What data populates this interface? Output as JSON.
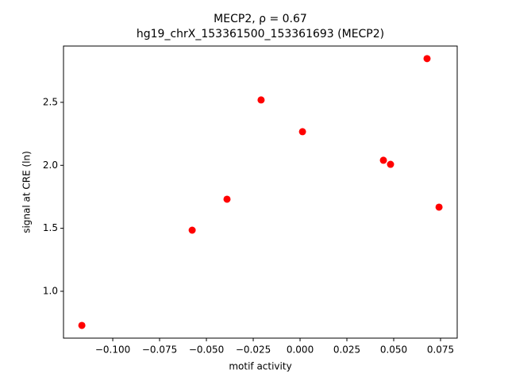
{
  "chart_data": {
    "type": "scatter",
    "title": "MECP2, ρ = 0.67",
    "subtitle": "hg19_chrX_153361500_153361693 (MECP2)",
    "xlabel": "motif activity",
    "ylabel": "signal at CRE (ln)",
    "series": [
      {
        "color": "#ff0000",
        "x": [
          -0.1165,
          -0.0576,
          -0.039,
          -0.0208,
          0.0013,
          0.0445,
          0.0483,
          0.0678,
          0.0742
        ],
        "values": [
          0.729,
          1.485,
          1.731,
          2.519,
          2.267,
          2.04,
          2.008,
          2.847,
          1.668
        ]
      }
    ],
    "xlim": [
      -0.1263,
      0.0839
    ],
    "ylim": [
      0.628,
      2.947
    ],
    "xticks": [
      {
        "value": -0.1,
        "label": "−0.100"
      },
      {
        "value": -0.075,
        "label": "−0.075"
      },
      {
        "value": -0.05,
        "label": "−0.050"
      },
      {
        "value": -0.025,
        "label": "−0.025"
      },
      {
        "value": 0,
        "label": "0.000"
      },
      {
        "value": 0.025,
        "label": "0.025"
      },
      {
        "value": 0.05,
        "label": "0.050"
      },
      {
        "value": 0.075,
        "label": "0.075"
      }
    ],
    "yticks": [
      {
        "value": 1,
        "label": "1.0"
      },
      1.5,
      {
        "value": 2,
        "label": "2.0"
      },
      2.5
    ],
    "grid": false
  }
}
